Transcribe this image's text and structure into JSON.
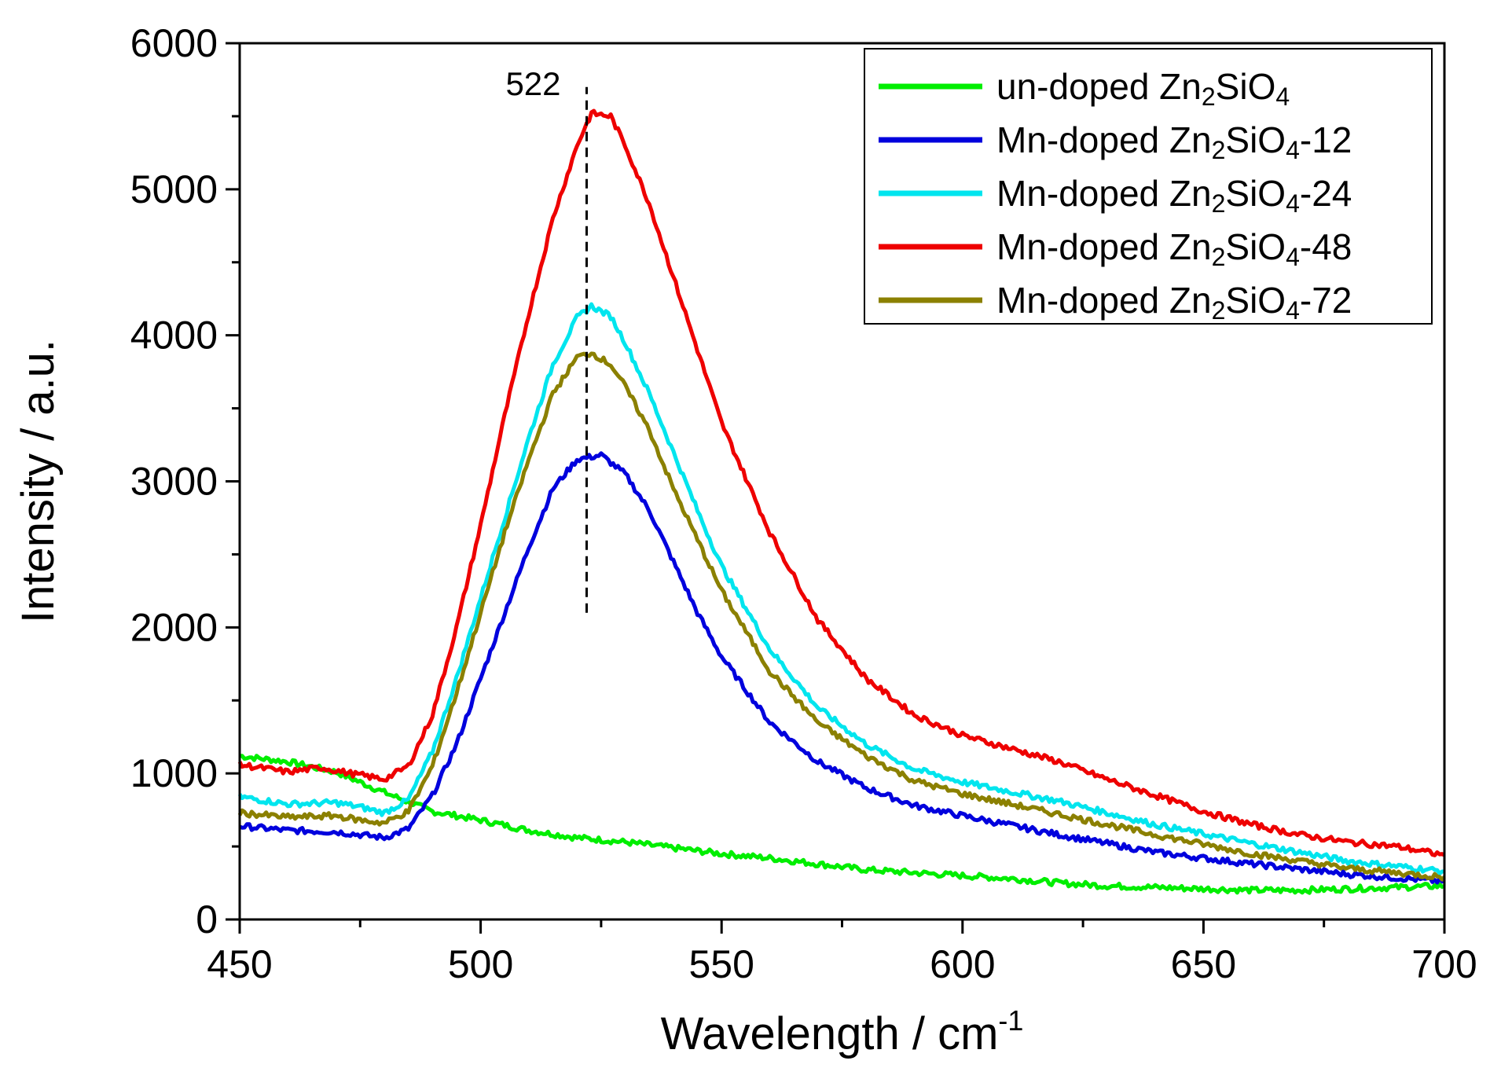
{
  "chart_data": {
    "type": "line",
    "title": "",
    "xlabel": "Wavelength / cm",
    "xlabel_sup": "-1",
    "ylabel": "Intensity / a.u.",
    "xlim": [
      450,
      700
    ],
    "ylim": [
      0,
      6000
    ],
    "x_ticks": [
      450,
      500,
      550,
      600,
      650,
      700
    ],
    "y_ticks": [
      0,
      1000,
      2000,
      3000,
      4000,
      5000,
      6000
    ],
    "x_tick_labels": [
      "450",
      "500",
      "550",
      "600",
      "650",
      "700"
    ],
    "y_tick_labels": [
      "0",
      "1000",
      "2000",
      "3000",
      "4000",
      "5000",
      "6000"
    ],
    "grid": false,
    "legend_position": "top-right",
    "annotation": {
      "label": "522",
      "x": 522,
      "y_from": 2100,
      "y_to": 5700
    },
    "series": [
      {
        "name_main": "un-doped Zn",
        "name_sub1": "2",
        "name_mid": "SiO",
        "name_sub2": "4",
        "name_suffix": "",
        "color": "#00ee00",
        "points": [
          [
            450,
            1120
          ],
          [
            460,
            1080
          ],
          [
            470,
            1010
          ],
          [
            480,
            870
          ],
          [
            490,
            740
          ],
          [
            500,
            680
          ],
          [
            510,
            610
          ],
          [
            520,
            560
          ],
          [
            530,
            530
          ],
          [
            540,
            490
          ],
          [
            550,
            450
          ],
          [
            560,
            420
          ],
          [
            570,
            380
          ],
          [
            580,
            340
          ],
          [
            590,
            320
          ],
          [
            600,
            300
          ],
          [
            610,
            280
          ],
          [
            620,
            250
          ],
          [
            630,
            230
          ],
          [
            640,
            220
          ],
          [
            650,
            210
          ],
          [
            660,
            200
          ],
          [
            670,
            200
          ],
          [
            680,
            210
          ],
          [
            690,
            220
          ],
          [
            700,
            230
          ]
        ]
      },
      {
        "name_main": "Mn-doped Zn",
        "name_sub1": "2",
        "name_mid": "SiO",
        "name_sub2": "4",
        "name_suffix": "-12",
        "color": "#0000dd",
        "points": [
          [
            450,
            640
          ],
          [
            460,
            610
          ],
          [
            470,
            600
          ],
          [
            475,
            580
          ],
          [
            480,
            560
          ],
          [
            485,
            620
          ],
          [
            490,
            850
          ],
          [
            495,
            1200
          ],
          [
            500,
            1650
          ],
          [
            505,
            2100
          ],
          [
            510,
            2550
          ],
          [
            515,
            2950
          ],
          [
            520,
            3150
          ],
          [
            525,
            3180
          ],
          [
            530,
            3050
          ],
          [
            535,
            2800
          ],
          [
            540,
            2450
          ],
          [
            545,
            2100
          ],
          [
            550,
            1800
          ],
          [
            560,
            1350
          ],
          [
            570,
            1080
          ],
          [
            580,
            900
          ],
          [
            590,
            780
          ],
          [
            600,
            710
          ],
          [
            620,
            580
          ],
          [
            640,
            460
          ],
          [
            660,
            380
          ],
          [
            680,
            310
          ],
          [
            700,
            260
          ]
        ]
      },
      {
        "name_main": "Mn-doped Zn",
        "name_sub1": "2",
        "name_mid": "SiO",
        "name_sub2": "4",
        "name_suffix": "-24",
        "color": "#00e5ee",
        "points": [
          [
            450,
            840
          ],
          [
            460,
            790
          ],
          [
            470,
            800
          ],
          [
            475,
            770
          ],
          [
            480,
            730
          ],
          [
            485,
            820
          ],
          [
            490,
            1150
          ],
          [
            495,
            1650
          ],
          [
            500,
            2200
          ],
          [
            505,
            2750
          ],
          [
            510,
            3300
          ],
          [
            515,
            3800
          ],
          [
            520,
            4120
          ],
          [
            523,
            4200
          ],
          [
            527,
            4130
          ],
          [
            530,
            3950
          ],
          [
            535,
            3600
          ],
          [
            540,
            3200
          ],
          [
            545,
            2800
          ],
          [
            550,
            2420
          ],
          [
            560,
            1850
          ],
          [
            570,
            1450
          ],
          [
            580,
            1200
          ],
          [
            590,
            1030
          ],
          [
            600,
            940
          ],
          [
            620,
            810
          ],
          [
            640,
            650
          ],
          [
            660,
            520
          ],
          [
            680,
            400
          ],
          [
            700,
            330
          ]
        ]
      },
      {
        "name_main": "Mn-doped Zn",
        "name_sub1": "2",
        "name_mid": "SiO",
        "name_sub2": "4",
        "name_suffix": "-48",
        "color": "#ee0000",
        "points": [
          [
            450,
            1060
          ],
          [
            460,
            1010
          ],
          [
            467,
            1040
          ],
          [
            473,
            1000
          ],
          [
            480,
            960
          ],
          [
            485,
            1050
          ],
          [
            490,
            1400
          ],
          [
            495,
            2000
          ],
          [
            500,
            2700
          ],
          [
            505,
            3450
          ],
          [
            510,
            4150
          ],
          [
            515,
            4800
          ],
          [
            520,
            5300
          ],
          [
            523,
            5520
          ],
          [
            527,
            5500
          ],
          [
            530,
            5300
          ],
          [
            535,
            4900
          ],
          [
            540,
            4400
          ],
          [
            545,
            3900
          ],
          [
            550,
            3400
          ],
          [
            560,
            2650
          ],
          [
            570,
            2050
          ],
          [
            580,
            1650
          ],
          [
            590,
            1400
          ],
          [
            600,
            1260
          ],
          [
            610,
            1170
          ],
          [
            620,
            1080
          ],
          [
            630,
            960
          ],
          [
            640,
            850
          ],
          [
            650,
            740
          ],
          [
            660,
            650
          ],
          [
            670,
            580
          ],
          [
            680,
            530
          ],
          [
            690,
            500
          ],
          [
            700,
            440
          ]
        ]
      },
      {
        "name_main": "Mn-doped Zn",
        "name_sub1": "2",
        "name_mid": "SiO",
        "name_sub2": "4",
        "name_suffix": "-72",
        "color": "#8b8000",
        "points": [
          [
            450,
            730
          ],
          [
            460,
            700
          ],
          [
            470,
            710
          ],
          [
            475,
            680
          ],
          [
            480,
            660
          ],
          [
            485,
            740
          ],
          [
            490,
            1050
          ],
          [
            495,
            1550
          ],
          [
            500,
            2100
          ],
          [
            505,
            2650
          ],
          [
            510,
            3150
          ],
          [
            515,
            3600
          ],
          [
            520,
            3850
          ],
          [
            523,
            3880
          ],
          [
            527,
            3800
          ],
          [
            530,
            3650
          ],
          [
            535,
            3350
          ],
          [
            540,
            2950
          ],
          [
            545,
            2600
          ],
          [
            550,
            2250
          ],
          [
            560,
            1700
          ],
          [
            570,
            1350
          ],
          [
            580,
            1120
          ],
          [
            590,
            950
          ],
          [
            600,
            860
          ],
          [
            620,
            720
          ],
          [
            640,
            580
          ],
          [
            660,
            450
          ],
          [
            680,
            350
          ],
          [
            700,
            290
          ]
        ]
      }
    ]
  }
}
